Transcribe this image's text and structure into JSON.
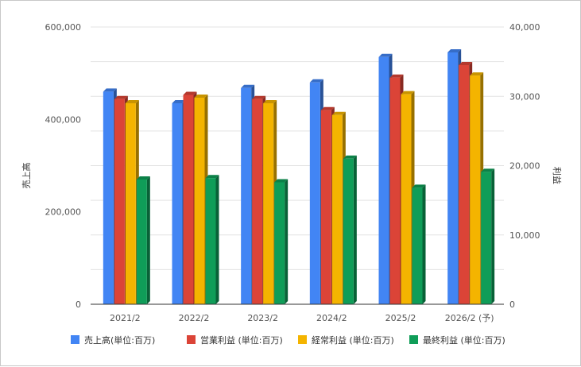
{
  "chart_data": {
    "type": "bar",
    "title": "",
    "xlabel": "",
    "ylabel": "売上高",
    "y2label": "利益",
    "categories": [
      "2021/2",
      "2022/2",
      "2023/2",
      "2024/2",
      "2025/2",
      "2026/2 (予)"
    ],
    "ylim": [
      0,
      600000
    ],
    "y2lim": [
      0,
      40000
    ],
    "y_ticks": [
      "0",
      "200,000",
      "400,000",
      "600,000"
    ],
    "y2_ticks": [
      "0",
      "10,000",
      "20,000",
      "30,000",
      "40,000"
    ],
    "grid": true,
    "legend_position": "bottom",
    "series": [
      {
        "name": "売上高(単位:百万)",
        "axis": "left",
        "color": "#4285f4",
        "values": [
          460000,
          435000,
          468000,
          480000,
          535000,
          545000
        ]
      },
      {
        "name": "営業利益 (単位:百万)",
        "axis": "right",
        "color": "#db4437",
        "values": [
          29600,
          30200,
          29600,
          28000,
          32700,
          34500
        ]
      },
      {
        "name": "経常利益 (単位:百万)",
        "axis": "right",
        "color": "#f4b400",
        "values": [
          29000,
          29800,
          29000,
          27300,
          30300,
          33000
        ]
      },
      {
        "name": "最終利益 (単位:百万)",
        "axis": "right",
        "color": "#0f9d58",
        "values": [
          18000,
          18200,
          17600,
          21000,
          16800,
          19100
        ]
      }
    ]
  }
}
